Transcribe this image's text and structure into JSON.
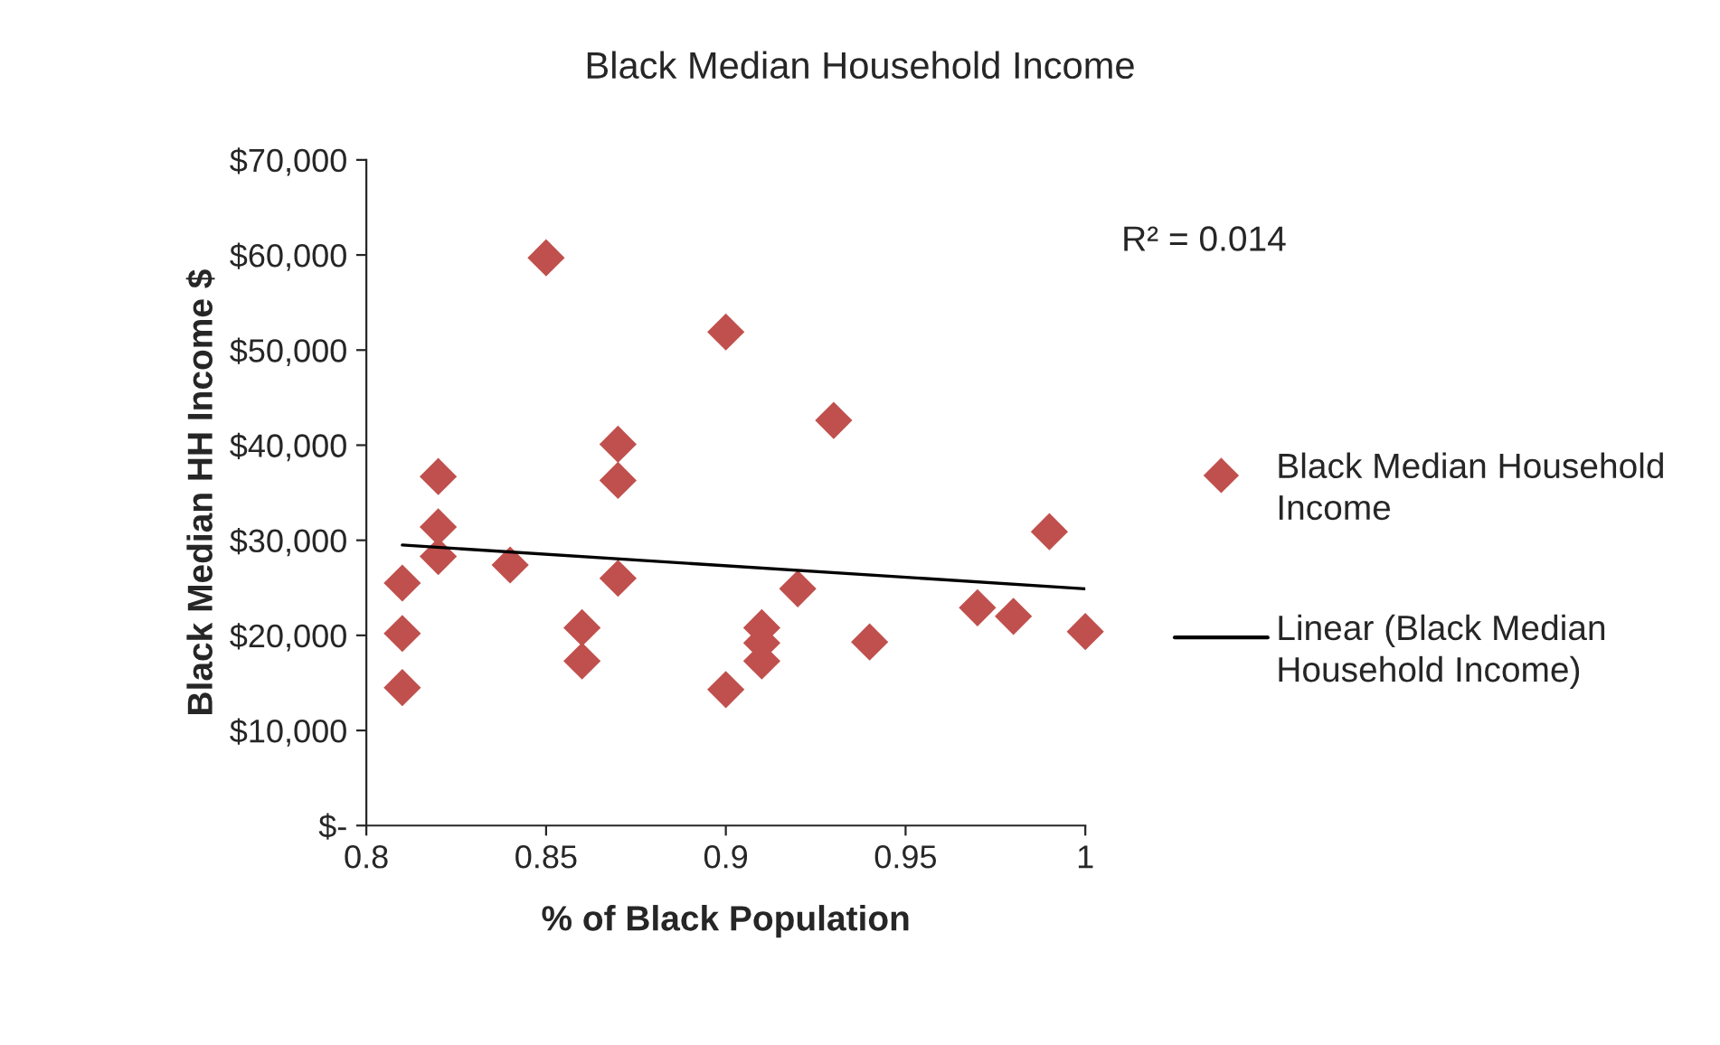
{
  "chart_data": {
    "type": "scatter",
    "title": "Black Median Household Income",
    "xlabel": "% of Black Population",
    "ylabel": "Black Median HH Income $",
    "annotations": [
      "R² = 0.014"
    ],
    "series": [
      {
        "name": "Black Median Household Income",
        "color": "#c0504d",
        "marker": "diamond",
        "x": [
          0.81,
          0.81,
          0.81,
          0.82,
          0.82,
          0.82,
          0.84,
          0.85,
          0.86,
          0.86,
          0.87,
          0.87,
          0.87,
          0.9,
          0.9,
          0.91,
          0.91,
          0.91,
          0.92,
          0.93,
          0.94,
          0.97,
          0.98,
          0.99,
          1.0
        ],
        "values": [
          25500,
          20200,
          14500,
          36700,
          31400,
          28300,
          27400,
          59700,
          20800,
          17300,
          40100,
          36300,
          26000,
          51900,
          14300,
          20800,
          19200,
          17300,
          24900,
          42600,
          19300,
          22900,
          22000,
          30900,
          20400
        ]
      },
      {
        "name": "Linear (Black Median Household Income)",
        "type": "line",
        "color": "#000000",
        "marker": "none",
        "line_style": "solid",
        "x": [
          0.81,
          1.0
        ],
        "values": [
          29500,
          24900
        ]
      }
    ],
    "xlim": [
      0.8,
      1.0
    ],
    "xticks": [
      0.8,
      0.85,
      0.9,
      0.95,
      1
    ],
    "ylim": [
      0,
      70000
    ],
    "yticks": [
      {
        "value": 0,
        "label": "$-"
      },
      {
        "value": 10000,
        "label": "$10,000"
      },
      {
        "value": 20000,
        "label": "$20,000"
      },
      {
        "value": 30000,
        "label": "$30,000"
      },
      {
        "value": 40000,
        "label": "$40,000"
      },
      {
        "value": 50000,
        "label": "$50,000"
      },
      {
        "value": 60000,
        "label": "$60,000"
      },
      {
        "value": 70000,
        "label": "$70,000"
      }
    ],
    "grid": false,
    "legend": "right"
  }
}
